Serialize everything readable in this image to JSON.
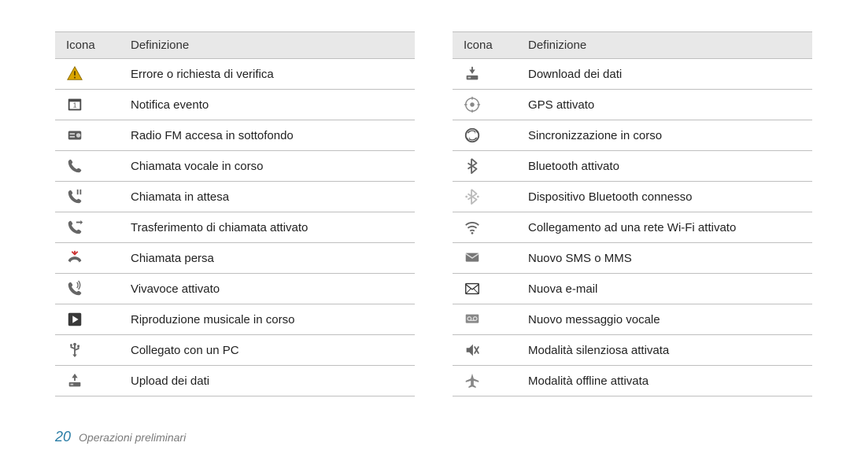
{
  "header": {
    "col_icon": "Icona",
    "col_def": "Definizione"
  },
  "left_rows": [
    {
      "icon": "warning",
      "label": "Errore o richiesta di verifica"
    },
    {
      "icon": "calendar",
      "label": "Notifica evento"
    },
    {
      "icon": "radio",
      "label": "Radio FM accesa in sottofondo"
    },
    {
      "icon": "phone",
      "label": "Chiamata vocale in corso"
    },
    {
      "icon": "phone-hold",
      "label": "Chiamata in attesa"
    },
    {
      "icon": "phone-forward",
      "label": "Trasferimento di chiamata attivato"
    },
    {
      "icon": "phone-missed",
      "label": "Chiamata persa"
    },
    {
      "icon": "speaker",
      "label": "Vivavoce attivato"
    },
    {
      "icon": "play",
      "label": "Riproduzione musicale in corso"
    },
    {
      "icon": "usb",
      "label": "Collegato con un PC"
    },
    {
      "icon": "upload",
      "label": "Upload dei dati"
    }
  ],
  "right_rows": [
    {
      "icon": "download",
      "label": "Download dei dati"
    },
    {
      "icon": "gps",
      "label": "GPS attivato"
    },
    {
      "icon": "sync",
      "label": "Sincronizzazione in corso"
    },
    {
      "icon": "bluetooth",
      "label": "Bluetooth attivato"
    },
    {
      "icon": "bluetooth-conn",
      "label": "Dispositivo Bluetooth connesso"
    },
    {
      "icon": "wifi",
      "label": "Collegamento ad una rete Wi-Fi attivato"
    },
    {
      "icon": "sms",
      "label": "Nuovo SMS o MMS"
    },
    {
      "icon": "email",
      "label": "Nuova e-mail"
    },
    {
      "icon": "voicemail",
      "label": "Nuovo messaggio vocale"
    },
    {
      "icon": "silent",
      "label": "Modalità silenziosa attivata"
    },
    {
      "icon": "airplane",
      "label": "Modalità offline attivata"
    }
  ],
  "footer": {
    "page_number": "20",
    "section_title": "Operazioni preliminari"
  },
  "colors": {
    "header_bg": "#e8e8e8",
    "border": "#bfbfbf",
    "pagenum": "#2a7da6",
    "section": "#7a7a7a",
    "icon_dark": "#3a3a3a",
    "icon_gray": "#8a8a8a"
  }
}
